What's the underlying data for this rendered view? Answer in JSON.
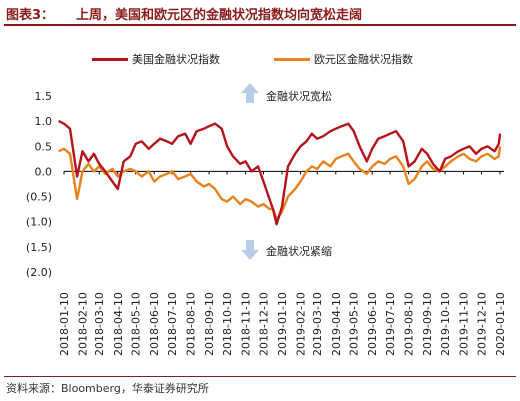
{
  "header": {
    "figure_label": "图表3：",
    "title": "上周，美国和欧元区的金融状况指数均向宽松走阔"
  },
  "footer": {
    "source": "资料来源：Bloomberg，华泰证券研究所"
  },
  "annotations": {
    "up_label": "金融状况宽松",
    "down_label": "金融状况紧缩"
  },
  "colors": {
    "us": "#b5121b",
    "euro": "#e8821e",
    "title": "#8b1a1a",
    "arrow": "#b8cde6"
  },
  "chart_data": {
    "type": "line",
    "ylim": [
      -2.0,
      1.5
    ],
    "y_ticks": [
      1.5,
      1.0,
      0.5,
      0.0,
      -0.5,
      -1.0,
      -1.5,
      -2.0
    ],
    "y_tick_labels": [
      "1.5",
      "1.0",
      "0.5",
      "0.0",
      "(0.5)",
      "(1.0)",
      "(1.5)",
      "(2.0)"
    ],
    "x_tick_labels": [
      "2018-01-10",
      "2018-02-10",
      "2018-03-10",
      "2018-04-10",
      "2018-05-10",
      "2018-06-10",
      "2018-07-10",
      "2018-08-10",
      "2018-09-10",
      "2018-10-10",
      "2018-11-10",
      "2018-12-10",
      "2019-01-10",
      "2019-02-10",
      "2019-03-10",
      "2019-04-10",
      "2019-05-10",
      "2019-06-10",
      "2019-07-10",
      "2019-08-10",
      "2019-09-10",
      "2019-10-10",
      "2019-11-10",
      "2019-12-10",
      "2020-01-10"
    ],
    "x_points": [
      "2018-01-01",
      "2018-01-10",
      "2018-01-20",
      "2018-02-01",
      "2018-02-10",
      "2018-02-20",
      "2018-03-01",
      "2018-03-10",
      "2018-03-20",
      "2018-04-01",
      "2018-04-10",
      "2018-04-20",
      "2018-05-01",
      "2018-05-10",
      "2018-05-20",
      "2018-06-01",
      "2018-06-10",
      "2018-06-20",
      "2018-07-01",
      "2018-07-10",
      "2018-07-20",
      "2018-08-01",
      "2018-08-10",
      "2018-08-20",
      "2018-09-01",
      "2018-09-10",
      "2018-09-20",
      "2018-10-01",
      "2018-10-10",
      "2018-10-20",
      "2018-11-01",
      "2018-11-10",
      "2018-11-20",
      "2018-12-01",
      "2018-12-10",
      "2018-12-20",
      "2018-12-26",
      "2019-01-01",
      "2019-01-10",
      "2019-01-20",
      "2019-02-01",
      "2019-02-10",
      "2019-02-20",
      "2019-03-01",
      "2019-03-10",
      "2019-03-20",
      "2019-04-01",
      "2019-04-10",
      "2019-04-20",
      "2019-05-01",
      "2019-05-10",
      "2019-05-20",
      "2019-06-01",
      "2019-06-10",
      "2019-06-20",
      "2019-07-01",
      "2019-07-10",
      "2019-07-20",
      "2019-08-01",
      "2019-08-10",
      "2019-08-20",
      "2019-09-01",
      "2019-09-10",
      "2019-09-20",
      "2019-10-01",
      "2019-10-10",
      "2019-10-20",
      "2019-11-01",
      "2019-11-10",
      "2019-11-20",
      "2019-12-01",
      "2019-12-10",
      "2019-12-20",
      "2020-01-01",
      "2020-01-08",
      "2020-01-10"
    ],
    "series": [
      {
        "name": "美国金融状况指数",
        "values": [
          1.0,
          0.95,
          0.85,
          -0.1,
          0.4,
          0.2,
          0.35,
          0.15,
          0.0,
          -0.2,
          -0.35,
          0.2,
          0.3,
          0.55,
          0.6,
          0.45,
          0.55,
          0.65,
          0.6,
          0.55,
          0.7,
          0.75,
          0.55,
          0.8,
          0.85,
          0.9,
          0.95,
          0.85,
          0.5,
          0.3,
          0.15,
          0.2,
          0.0,
          0.1,
          -0.2,
          -0.55,
          -0.75,
          -1.05,
          -0.7,
          0.1,
          0.35,
          0.5,
          0.6,
          0.75,
          0.65,
          0.7,
          0.8,
          0.85,
          0.9,
          0.95,
          0.8,
          0.5,
          0.2,
          0.45,
          0.65,
          0.7,
          0.75,
          0.8,
          0.6,
          0.1,
          0.2,
          0.45,
          0.35,
          0.15,
          0.0,
          0.25,
          0.3,
          0.4,
          0.45,
          0.5,
          0.35,
          0.45,
          0.5,
          0.4,
          0.55,
          0.75
        ]
      },
      {
        "name": "欧元区金融状况指数",
        "values": [
          0.4,
          0.45,
          0.35,
          -0.55,
          0.0,
          0.15,
          0.0,
          0.1,
          -0.05,
          0.05,
          -0.1,
          0.0,
          0.05,
          0.0,
          -0.1,
          0.0,
          -0.2,
          -0.1,
          -0.05,
          0.0,
          -0.15,
          -0.1,
          -0.05,
          -0.2,
          -0.3,
          -0.25,
          -0.35,
          -0.55,
          -0.6,
          -0.5,
          -0.65,
          -0.55,
          -0.6,
          -0.7,
          -0.65,
          -0.75,
          -0.75,
          -0.95,
          -0.8,
          -0.5,
          -0.35,
          -0.2,
          0.0,
          0.1,
          0.05,
          0.2,
          0.1,
          0.25,
          0.3,
          0.35,
          0.2,
          0.05,
          -0.05,
          0.1,
          0.2,
          0.15,
          0.25,
          0.3,
          0.1,
          -0.25,
          -0.15,
          0.1,
          0.2,
          0.05,
          0.0,
          0.1,
          0.2,
          0.3,
          0.35,
          0.25,
          0.2,
          0.3,
          0.35,
          0.25,
          0.3,
          0.5
        ]
      }
    ]
  }
}
